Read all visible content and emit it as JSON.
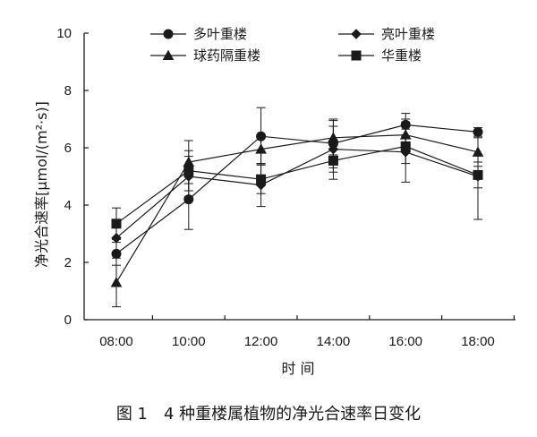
{
  "chart_data": {
    "type": "line",
    "x": [
      "08:00",
      "10:00",
      "12:00",
      "14:00",
      "16:00",
      "18:00"
    ],
    "xlabel": "时 间",
    "ylabel": "净光合速率[μmol/(m²·s)]",
    "ylim": [
      0,
      10
    ],
    "yticks": [
      0,
      2,
      4,
      6,
      8,
      10
    ],
    "grid": false,
    "legend_position": "top",
    "series": [
      {
        "name": "多叶重楼",
        "marker": "circle",
        "values": [
          2.3,
          4.2,
          6.4,
          6.15,
          6.8,
          6.55
        ],
        "errors": [
          0.4,
          1.05,
          1.0,
          0.85,
          0.4,
          0.15
        ]
      },
      {
        "name": "亮叶重楼",
        "marker": "diamond",
        "values": [
          2.85,
          5.0,
          4.7,
          5.95,
          5.85,
          5.0
        ],
        "errors": [
          0.0,
          0.7,
          0.75,
          0.8,
          1.05,
          1.5
        ]
      },
      {
        "name": "球药隔重楼",
        "marker": "triangle",
        "values": [
          1.3,
          5.5,
          5.95,
          6.35,
          6.45,
          5.85
        ],
        "errors": [
          0.85,
          0.75,
          0.5,
          0.6,
          0.55,
          0.5
        ]
      },
      {
        "name": "华重楼",
        "marker": "square",
        "values": [
          3.35,
          5.2,
          4.9,
          5.55,
          6.05,
          5.05
        ],
        "errors": [
          0.55,
          0.7,
          0.5,
          0.65,
          0.6,
          0.45
        ]
      }
    ],
    "caption": "图 1　4 种重楼属植物的净光合速率日变化"
  },
  "colors": {
    "ink": "#1a1a1a",
    "background": "#ffffff"
  }
}
